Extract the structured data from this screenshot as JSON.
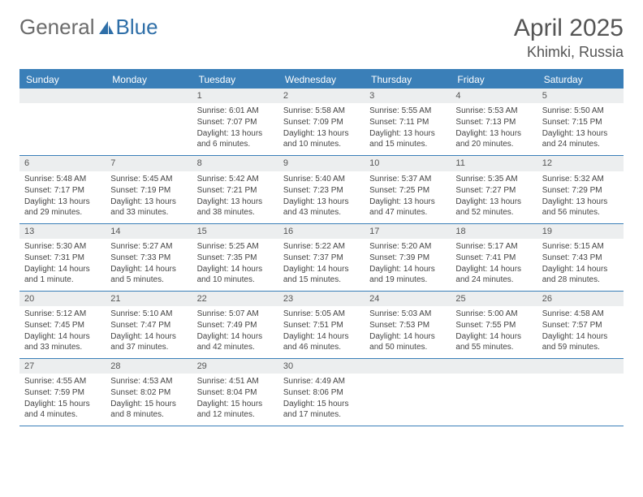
{
  "brand": {
    "word1": "General",
    "word2": "Blue"
  },
  "title": "April 2025",
  "location": "Khimki, Russia",
  "colors": {
    "header_bar": "#3a7fb8",
    "daynum_bg": "#eceeef",
    "text": "#444444",
    "title_text": "#555555",
    "logo_gray": "#6b6b6b",
    "logo_blue": "#2f6fa8"
  },
  "day_labels": [
    "Sunday",
    "Monday",
    "Tuesday",
    "Wednesday",
    "Thursday",
    "Friday",
    "Saturday"
  ],
  "weeks": [
    [
      null,
      null,
      {
        "n": "1",
        "sunrise": "6:01 AM",
        "sunset": "7:07 PM",
        "daylight": "13 hours and 6 minutes."
      },
      {
        "n": "2",
        "sunrise": "5:58 AM",
        "sunset": "7:09 PM",
        "daylight": "13 hours and 10 minutes."
      },
      {
        "n": "3",
        "sunrise": "5:55 AM",
        "sunset": "7:11 PM",
        "daylight": "13 hours and 15 minutes."
      },
      {
        "n": "4",
        "sunrise": "5:53 AM",
        "sunset": "7:13 PM",
        "daylight": "13 hours and 20 minutes."
      },
      {
        "n": "5",
        "sunrise": "5:50 AM",
        "sunset": "7:15 PM",
        "daylight": "13 hours and 24 minutes."
      }
    ],
    [
      {
        "n": "6",
        "sunrise": "5:48 AM",
        "sunset": "7:17 PM",
        "daylight": "13 hours and 29 minutes."
      },
      {
        "n": "7",
        "sunrise": "5:45 AM",
        "sunset": "7:19 PM",
        "daylight": "13 hours and 33 minutes."
      },
      {
        "n": "8",
        "sunrise": "5:42 AM",
        "sunset": "7:21 PM",
        "daylight": "13 hours and 38 minutes."
      },
      {
        "n": "9",
        "sunrise": "5:40 AM",
        "sunset": "7:23 PM",
        "daylight": "13 hours and 43 minutes."
      },
      {
        "n": "10",
        "sunrise": "5:37 AM",
        "sunset": "7:25 PM",
        "daylight": "13 hours and 47 minutes."
      },
      {
        "n": "11",
        "sunrise": "5:35 AM",
        "sunset": "7:27 PM",
        "daylight": "13 hours and 52 minutes."
      },
      {
        "n": "12",
        "sunrise": "5:32 AM",
        "sunset": "7:29 PM",
        "daylight": "13 hours and 56 minutes."
      }
    ],
    [
      {
        "n": "13",
        "sunrise": "5:30 AM",
        "sunset": "7:31 PM",
        "daylight": "14 hours and 1 minute."
      },
      {
        "n": "14",
        "sunrise": "5:27 AM",
        "sunset": "7:33 PM",
        "daylight": "14 hours and 5 minutes."
      },
      {
        "n": "15",
        "sunrise": "5:25 AM",
        "sunset": "7:35 PM",
        "daylight": "14 hours and 10 minutes."
      },
      {
        "n": "16",
        "sunrise": "5:22 AM",
        "sunset": "7:37 PM",
        "daylight": "14 hours and 15 minutes."
      },
      {
        "n": "17",
        "sunrise": "5:20 AM",
        "sunset": "7:39 PM",
        "daylight": "14 hours and 19 minutes."
      },
      {
        "n": "18",
        "sunrise": "5:17 AM",
        "sunset": "7:41 PM",
        "daylight": "14 hours and 24 minutes."
      },
      {
        "n": "19",
        "sunrise": "5:15 AM",
        "sunset": "7:43 PM",
        "daylight": "14 hours and 28 minutes."
      }
    ],
    [
      {
        "n": "20",
        "sunrise": "5:12 AM",
        "sunset": "7:45 PM",
        "daylight": "14 hours and 33 minutes."
      },
      {
        "n": "21",
        "sunrise": "5:10 AM",
        "sunset": "7:47 PM",
        "daylight": "14 hours and 37 minutes."
      },
      {
        "n": "22",
        "sunrise": "5:07 AM",
        "sunset": "7:49 PM",
        "daylight": "14 hours and 42 minutes."
      },
      {
        "n": "23",
        "sunrise": "5:05 AM",
        "sunset": "7:51 PM",
        "daylight": "14 hours and 46 minutes."
      },
      {
        "n": "24",
        "sunrise": "5:03 AM",
        "sunset": "7:53 PM",
        "daylight": "14 hours and 50 minutes."
      },
      {
        "n": "25",
        "sunrise": "5:00 AM",
        "sunset": "7:55 PM",
        "daylight": "14 hours and 55 minutes."
      },
      {
        "n": "26",
        "sunrise": "4:58 AM",
        "sunset": "7:57 PM",
        "daylight": "14 hours and 59 minutes."
      }
    ],
    [
      {
        "n": "27",
        "sunrise": "4:55 AM",
        "sunset": "7:59 PM",
        "daylight": "15 hours and 4 minutes."
      },
      {
        "n": "28",
        "sunrise": "4:53 AM",
        "sunset": "8:02 PM",
        "daylight": "15 hours and 8 minutes."
      },
      {
        "n": "29",
        "sunrise": "4:51 AM",
        "sunset": "8:04 PM",
        "daylight": "15 hours and 12 minutes."
      },
      {
        "n": "30",
        "sunrise": "4:49 AM",
        "sunset": "8:06 PM",
        "daylight": "15 hours and 17 minutes."
      },
      null,
      null,
      null
    ]
  ],
  "labels": {
    "sunrise_prefix": "Sunrise: ",
    "sunset_prefix": "Sunset: ",
    "daylight_prefix": "Daylight: "
  }
}
